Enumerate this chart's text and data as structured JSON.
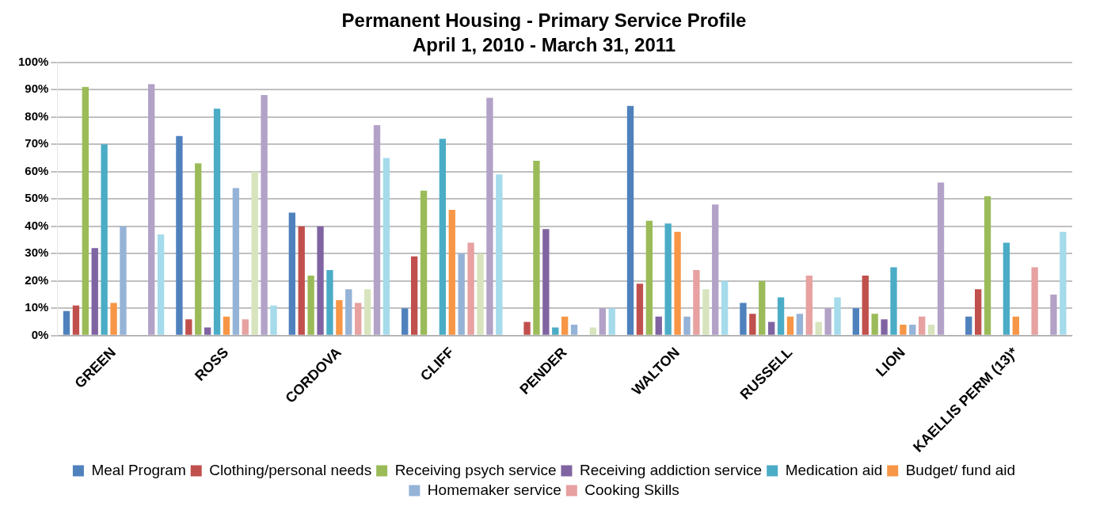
{
  "chart_data": {
    "type": "bar",
    "title": "Permanent Housing - Primary Service Profile",
    "subtitle": "April 1, 2010 - March 31, 2011",
    "categories": [
      "GREEN",
      "ROSS",
      "CORDOVA",
      "CLIFF",
      "PENDER",
      "WALTON",
      "RUSSELL",
      "LION",
      "KAELLIS PERM (13)*"
    ],
    "series": [
      {
        "name": "Meal Program",
        "color": "#4f81bd",
        "values": [
          9,
          73,
          45,
          10,
          0,
          84,
          12,
          10,
          7
        ]
      },
      {
        "name": "Clothing/personal needs",
        "color": "#c0504d",
        "values": [
          11,
          6,
          40,
          29,
          5,
          19,
          8,
          22,
          17
        ]
      },
      {
        "name": "Receiving psych service",
        "color": "#9bbb59",
        "values": [
          91,
          63,
          22,
          53,
          64,
          42,
          20,
          8,
          51
        ]
      },
      {
        "name": "Receiving addiction service",
        "color": "#8064a2",
        "values": [
          32,
          3,
          40,
          0,
          39,
          7,
          5,
          6,
          0
        ]
      },
      {
        "name": "Medication aid",
        "color": "#4bacc6",
        "values": [
          70,
          83,
          24,
          72,
          3,
          41,
          14,
          25,
          34
        ]
      },
      {
        "name": "Budget/ fund aid",
        "color": "#f79646",
        "values": [
          12,
          7,
          13,
          46,
          7,
          38,
          7,
          4,
          7
        ]
      },
      {
        "name": "Homemaker service",
        "color": "#95b3d7",
        "values": [
          40,
          54,
          17,
          30,
          4,
          7,
          8,
          4,
          0
        ]
      },
      {
        "name": "Cooking Skills",
        "color": "#e6a1a0",
        "values": [
          0,
          6,
          12,
          34,
          0,
          24,
          22,
          7,
          25
        ]
      },
      {
        "color": "#d7e4bd",
        "values": [
          0,
          60,
          17,
          30,
          3,
          17,
          5,
          4,
          0
        ]
      },
      {
        "color": "#b3a2c7",
        "values": [
          92,
          88,
          77,
          87,
          10,
          48,
          10,
          56,
          15
        ]
      },
      {
        "color": "#a5dbeb",
        "values": [
          37,
          11,
          65,
          59,
          10,
          20,
          14,
          0,
          38
        ]
      }
    ],
    "ylim": [
      0,
      100
    ],
    "yticks": [
      {
        "value": 0,
        "label": "0%"
      },
      {
        "value": 10,
        "label": "10%"
      },
      {
        "value": 20,
        "label": "20%"
      },
      {
        "value": 30,
        "label": "30%"
      },
      {
        "value": 40,
        "label": "40%"
      },
      {
        "value": 50,
        "label": "50%"
      },
      {
        "value": 60,
        "label": "60%"
      },
      {
        "value": 70,
        "label": "70%"
      },
      {
        "value": 80,
        "label": "80%"
      },
      {
        "value": 90,
        "label": "90%"
      },
      {
        "value": 100,
        "label": "100%"
      }
    ],
    "grid": "y",
    "legend": "bottom"
  }
}
